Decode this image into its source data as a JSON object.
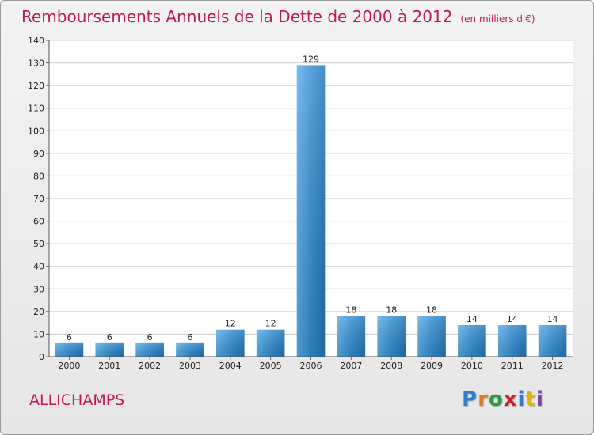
{
  "title": "Remboursements Annuels de la Dette de 2000 à 2012",
  "unit": "(en milliers d'€)",
  "commune": "ALLICHAMPS",
  "logo": {
    "letters": [
      "P",
      "r",
      "o",
      "x",
      "i",
      "t",
      "i"
    ],
    "colors": [
      "#2e7bcf",
      "#e07b1a",
      "#2e9b3c",
      "#d11f2e",
      "#2e7bcf",
      "#e0b11a",
      "#7a3fb5"
    ]
  },
  "colors": {
    "bar": "#3592d6",
    "title": "#c2185b",
    "grid": "#cccccc"
  },
  "chart_data": {
    "type": "bar",
    "title": "Remboursements Annuels de la Dette de 2000 à 2012",
    "xlabel": "",
    "ylabel": "",
    "categories": [
      "2000",
      "2001",
      "2002",
      "2003",
      "2004",
      "2005",
      "2006",
      "2007",
      "2008",
      "2009",
      "2010",
      "2011",
      "2012"
    ],
    "values": [
      6,
      6,
      6,
      6,
      12,
      12,
      129,
      18,
      18,
      18,
      14,
      14,
      14
    ],
    "ylim": [
      0,
      140
    ],
    "yticks": [
      0,
      10,
      20,
      30,
      40,
      50,
      60,
      70,
      80,
      90,
      100,
      110,
      120,
      130,
      140
    ],
    "grid": true
  }
}
